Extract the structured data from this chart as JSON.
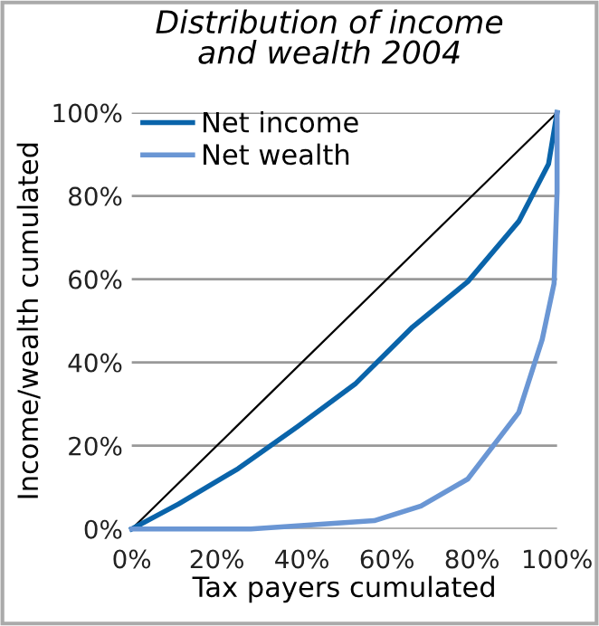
{
  "chart_data": {
    "type": "line",
    "title": "Distribution of income\nand wealth 2004",
    "xlabel": "Tax payers cumulated",
    "ylabel": "Income/wealth cumulated",
    "series": [
      {
        "type": "line",
        "color": "#000000",
        "x": [
          0,
          100
        ],
        "values": [
          0,
          100
        ]
      },
      {
        "name": "Net income",
        "color": "#0a64aa",
        "x": [
          0,
          11,
          25,
          39,
          52.5,
          66,
          79,
          91,
          98,
          100
        ],
        "values": [
          0,
          6,
          14.5,
          24.6,
          34.8,
          48.5,
          59.4,
          73.9,
          87.7,
          100
        ]
      },
      {
        "name": "Net wealth",
        "color": "#6a96d4",
        "x": [
          0,
          28,
          57,
          68,
          79,
          91,
          96.5,
          99.3,
          100,
          100
        ],
        "values": [
          0,
          0,
          2,
          5.5,
          12,
          28,
          45.5,
          59,
          81,
          100
        ]
      }
    ],
    "xlim": [
      0,
      100
    ],
    "ylim": [
      0,
      100
    ],
    "xticks": [
      {
        "value": 0,
        "label": "0%"
      },
      {
        "value": 20,
        "label": "20%"
      },
      {
        "value": 40,
        "label": "40%"
      },
      {
        "value": 60,
        "label": "60%"
      },
      {
        "value": 80,
        "label": "80%"
      },
      {
        "value": 100,
        "label": "100%"
      }
    ],
    "yticks": [
      {
        "value": 0,
        "label": "0%"
      },
      {
        "value": 20,
        "label": "20%"
      },
      {
        "value": 40,
        "label": "40%"
      },
      {
        "value": 60,
        "label": "60%"
      },
      {
        "value": 80,
        "label": "80%"
      },
      {
        "value": 100,
        "label": "100%"
      }
    ],
    "grid": "y",
    "legend": "top left"
  }
}
